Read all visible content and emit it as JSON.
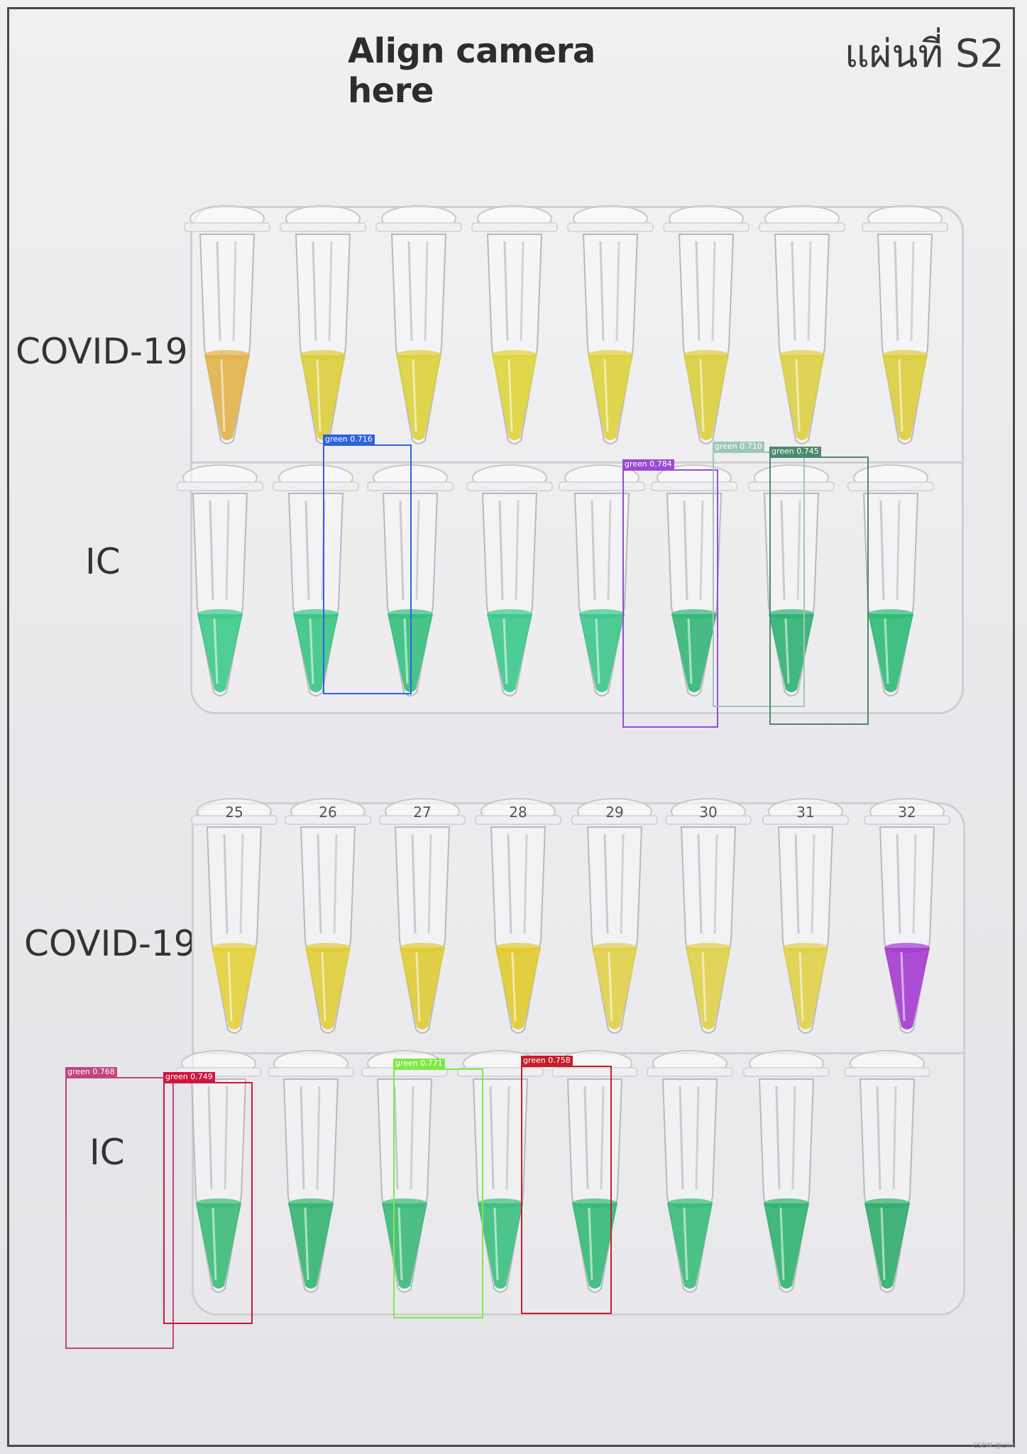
{
  "sheet": {
    "title": "Align camera here",
    "sheet_number": "แผ่นที่ S2",
    "row_labels": [
      "COVID-19",
      "IC",
      "COVID-19",
      "IC"
    ],
    "tube_caps_bottom": [
      "25",
      "26",
      "27",
      "28",
      "29",
      "30",
      "31",
      "32"
    ],
    "watermark": "CSDN @ziiic"
  },
  "tubes": {
    "plate1_covid": [
      "#e2b24a",
      "#dccd3b",
      "#dcd03b",
      "#ddd43a",
      "#ddd23c",
      "#dccf3e",
      "#ddcf45",
      "#dccd3d"
    ],
    "plate1_ic": [
      "#3dc98a",
      "#39c585",
      "#35bf80",
      "#3bc98b",
      "#3cc78a",
      "#33b678",
      "#2fb173",
      "#2fb975"
    ],
    "plate2_covid": [
      "#e3d03a",
      "#e0cd38",
      "#dfcb34",
      "#e1ca2e",
      "#e0d04a",
      "#dfd049",
      "#dfd048",
      "#a43ad0"
    ],
    "plate2_ic": [
      "#3bbb78",
      "#33b570",
      "#3bb979",
      "#3bbf80",
      "#33b878",
      "#38bb7a",
      "#2fb26f",
      "#2fac6b"
    ]
  },
  "detections": [
    {
      "label": "green 0.716",
      "color": "#2f62e0"
    },
    {
      "label": "green 0.784",
      "color": "#9a4ad6"
    },
    {
      "label": "green 0.710",
      "color": "#9fc7b8"
    },
    {
      "label": "green 0.745",
      "color": "#4c8a6f"
    },
    {
      "label": "green 0.768",
      "color": "#c2457e"
    },
    {
      "label": "green 0.749",
      "color": "#d2153f"
    },
    {
      "label": "green 0.771",
      "color": "#7eea45"
    },
    {
      "label": "green 0.758",
      "color": "#c81c28"
    }
  ]
}
